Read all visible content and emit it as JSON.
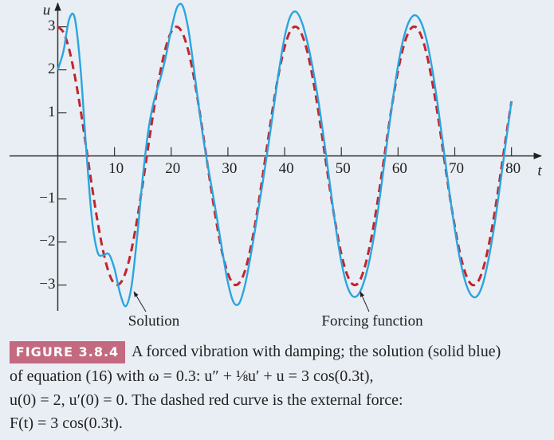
{
  "chart_data": {
    "type": "line",
    "x_label": "t",
    "y_label": "u",
    "x": [
      0,
      1,
      2,
      3,
      4,
      5,
      6,
      7,
      8,
      9,
      10,
      11,
      12,
      13,
      14,
      15,
      16,
      17,
      18,
      19,
      20,
      21,
      22,
      23,
      24,
      25,
      26,
      27,
      28,
      29,
      30,
      31,
      32,
      33,
      34,
      35,
      36,
      37,
      38,
      39,
      40,
      41,
      42,
      43,
      44,
      45,
      46,
      47,
      48,
      49,
      50,
      51,
      52,
      53,
      54,
      55,
      56,
      57,
      58,
      59,
      60,
      61,
      62,
      63,
      64,
      65,
      66,
      67,
      68,
      69,
      70,
      71,
      72,
      73,
      74,
      75,
      76,
      77,
      78,
      79,
      80
    ],
    "series": [
      {
        "name": "Solution",
        "color": "#2aa5df",
        "dashed": false,
        "values": [
          2.0,
          2.43,
          3.17,
          3.2,
          2.05,
          0.19,
          -1.44,
          -2.23,
          -2.31,
          -2.28,
          -2.62,
          -3.2,
          -3.49,
          -3.03,
          -1.87,
          -0.48,
          0.62,
          1.3,
          1.75,
          2.28,
          2.93,
          3.44,
          3.49,
          2.96,
          2.03,
          1.01,
          0.12,
          -0.63,
          -1.39,
          -2.2,
          -2.94,
          -3.4,
          -3.42,
          -3.01,
          -2.33,
          -1.54,
          -0.73,
          0.13,
          1.05,
          1.98,
          2.76,
          3.24,
          3.35,
          3.12,
          2.65,
          2.01,
          1.24,
          0.32,
          -0.67,
          -1.65,
          -2.46,
          -3.01,
          -3.26,
          -3.22,
          -2.92,
          -2.4,
          -1.67,
          -0.75,
          0.25,
          1.24,
          2.1,
          2.75,
          3.14,
          3.27,
          3.12,
          2.71,
          2.04,
          1.18,
          0.2,
          -0.79,
          -1.7,
          -2.45,
          -2.98,
          -3.25,
          -3.25,
          -2.95,
          -2.37,
          -1.6,
          -0.67,
          0.31,
          1.27
        ]
      },
      {
        "name": "Forcing function",
        "color": "#c0262d",
        "dashed": true,
        "values": [
          3.0,
          2.87,
          2.48,
          1.86,
          1.09,
          0.21,
          -0.68,
          -1.51,
          -2.21,
          -2.71,
          -2.97,
          -2.96,
          -2.69,
          -2.18,
          -1.47,
          -0.63,
          0.26,
          1.13,
          1.9,
          2.5,
          2.88,
          3.0,
          2.85,
          2.45,
          1.83,
          1.04,
          0.16,
          -0.73,
          -1.56,
          -2.25,
          -2.73,
          -2.98,
          -2.95,
          -2.67,
          -2.14,
          -1.43,
          -0.58,
          0.31,
          1.18,
          1.94,
          2.53,
          2.9,
          3.0,
          2.83,
          2.42,
          1.78,
          0.99,
          0.11,
          -0.78,
          -1.6,
          -2.28,
          -2.75,
          -2.98,
          -2.95,
          -2.64,
          -2.1,
          -1.38,
          -0.53,
          0.36,
          1.23,
          1.98,
          2.56,
          2.91,
          3.0,
          2.82,
          2.39,
          1.74,
          0.95,
          0.06,
          -0.83,
          -1.64,
          -2.31,
          -2.77,
          -2.99,
          -2.94,
          -2.62,
          -2.07,
          -1.34,
          -0.48,
          0.41,
          1.27
        ]
      }
    ],
    "xlim": [
      -8.5,
      83
    ],
    "ylim": [
      -3.6,
      3.4
    ],
    "xticks": [
      10,
      20,
      30,
      40,
      50,
      60,
      70,
      80
    ],
    "yticks": [
      {
        "value": -3,
        "label": "−3"
      },
      {
        "value": -2,
        "label": "−2"
      },
      {
        "value": -1,
        "label": "−1"
      },
      1,
      2,
      3
    ],
    "grid": false
  },
  "caption": {
    "label": "FIGURE 3.8.4",
    "lines": [
      "A forced vibration with damping; the solution (solid blue)",
      "of equation (16) with ω = 0.3: u″ + ⅛u′ + u = 3 cos(0.3t),",
      "u(0) = 2,  u′(0) = 0. The dashed red curve is the external force:",
      "F(t) = 3 cos(0.3t)."
    ]
  }
}
